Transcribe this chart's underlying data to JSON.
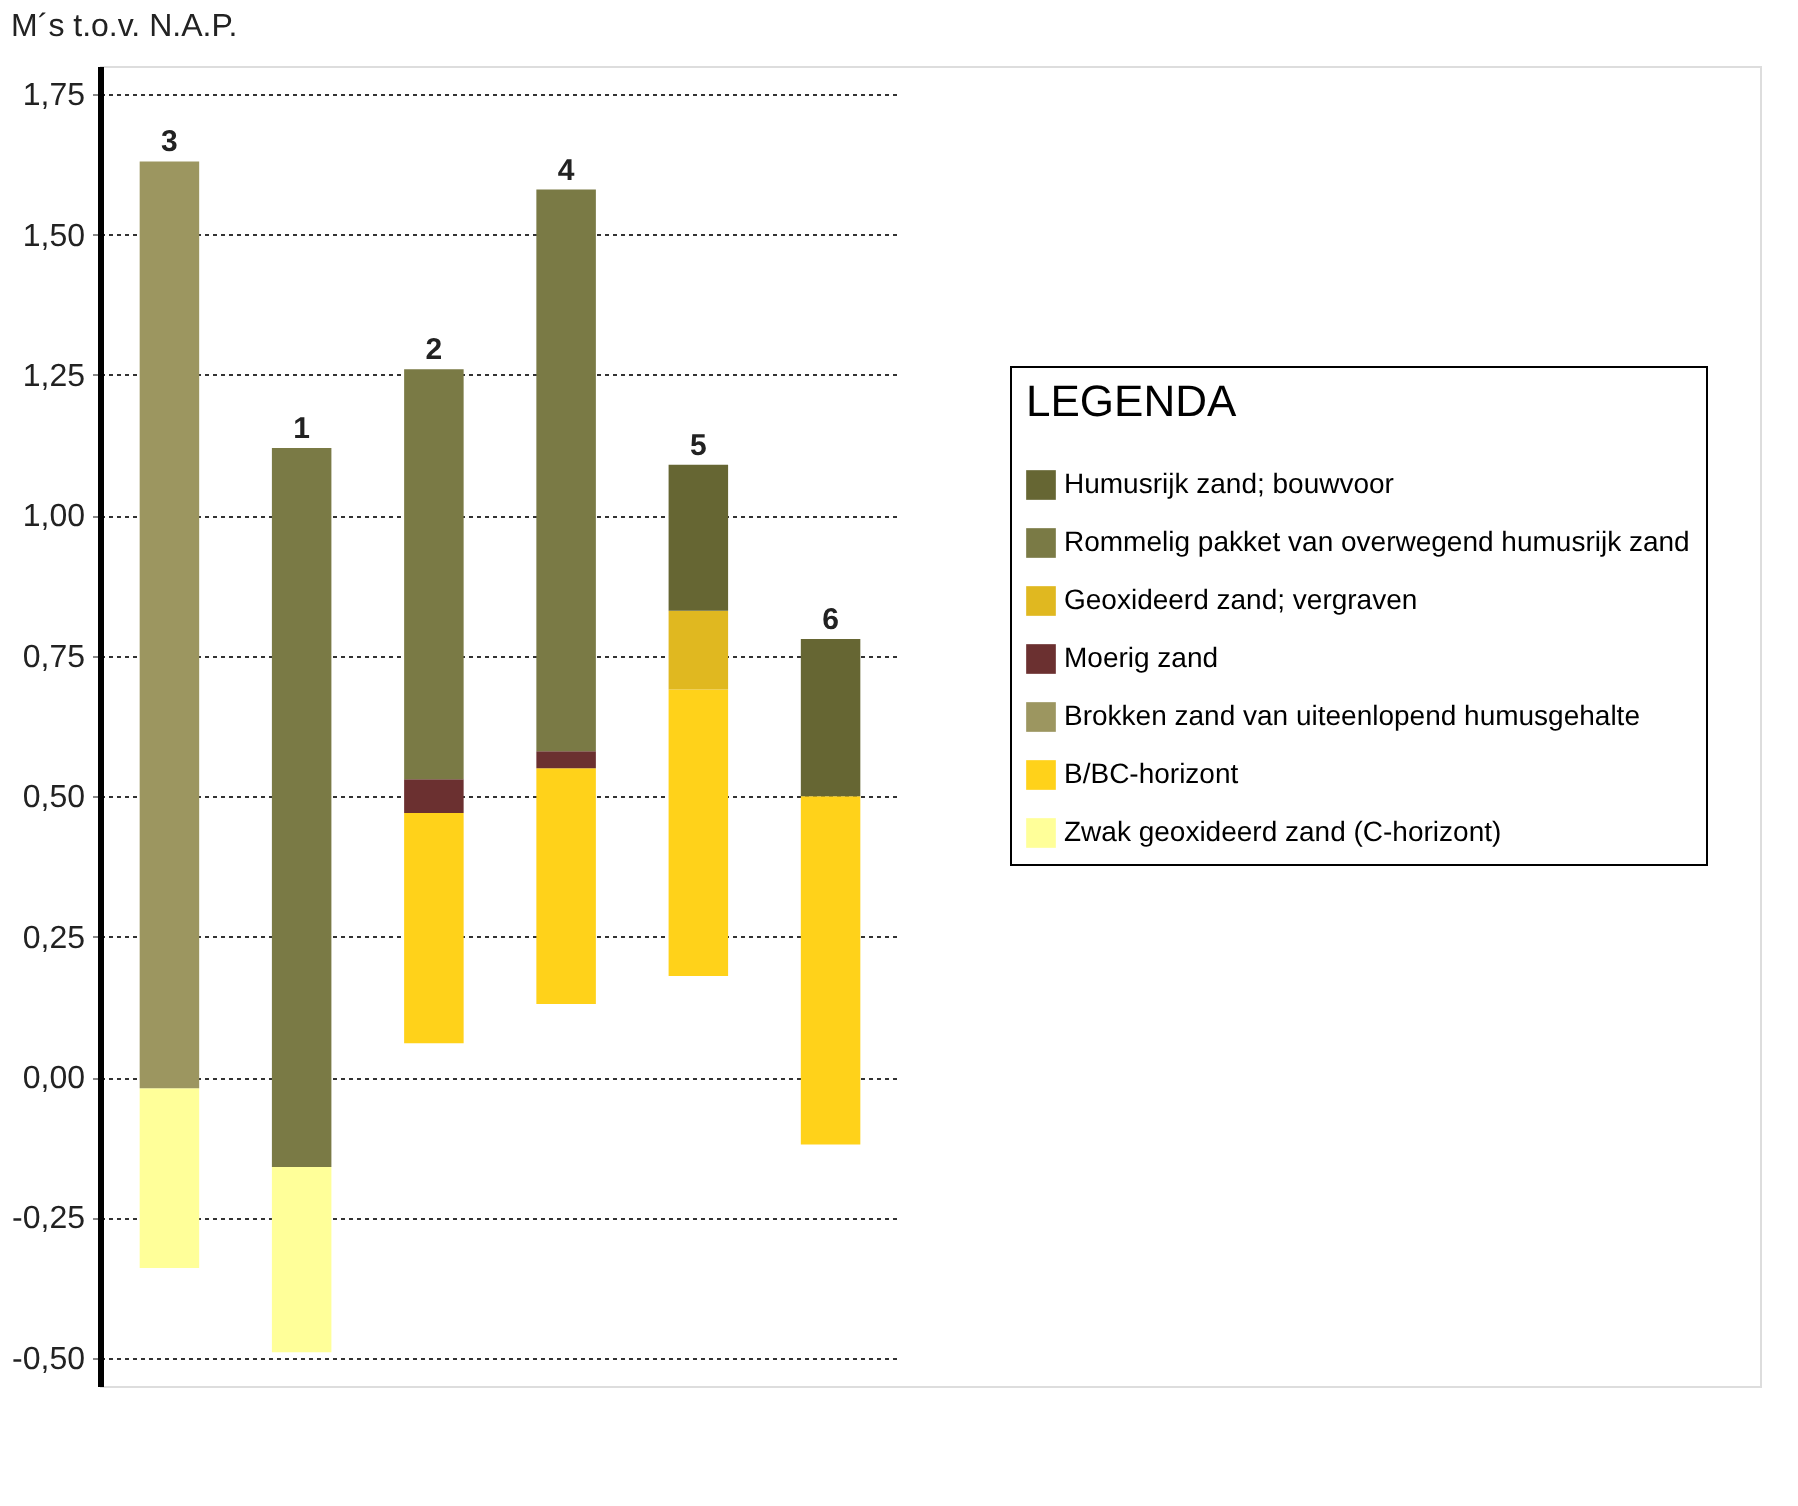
{
  "chart_data": {
    "type": "bar",
    "ylabel": "M´s  t.o.v. N.A.P.",
    "legend_title": "LEGENDA",
    "categories": [
      "3",
      "1",
      "2",
      "4",
      "5",
      "6"
    ],
    "series": [
      {
        "name": "Zwak geoxideerd zand (C-horizont)",
        "color": "#ffff99",
        "base": [
          -0.34,
          -0.49,
          null,
          null,
          null,
          null
        ],
        "values": [
          0.32,
          0.33,
          null,
          null,
          null,
          null
        ]
      },
      {
        "name": "B/BC-horizont",
        "color": "#ffd21a",
        "base": [
          null,
          null,
          0.06,
          0.13,
          0.18,
          -0.12
        ],
        "values": [
          null,
          null,
          0.41,
          0.42,
          0.51,
          0.62
        ]
      },
      {
        "name": "Brokken zand van uiteenlopend humusgehalte",
        "color": "#9c9660",
        "base": [
          -0.02,
          null,
          null,
          null,
          null,
          null
        ],
        "values": [
          1.65,
          null,
          null,
          null,
          null,
          null
        ]
      },
      {
        "name": "Moerig zand",
        "color": "#6b3030",
        "base": [
          null,
          null,
          0.47,
          0.55,
          null,
          null
        ],
        "values": [
          null,
          null,
          0.06,
          0.03,
          null,
          null
        ]
      },
      {
        "name": "Geoxideerd zand; vergraven",
        "color": "#e0b820",
        "base": [
          null,
          null,
          null,
          null,
          0.69,
          null
        ],
        "values": [
          null,
          null,
          null,
          null,
          0.14,
          null
        ]
      },
      {
        "name": "Rommelig pakket van overwegend humusrijk zand",
        "color": "#7a7a45",
        "base": [
          null,
          -0.16,
          0.53,
          0.58,
          null,
          null
        ],
        "values": [
          null,
          1.28,
          0.73,
          1.0,
          null,
          null
        ]
      },
      {
        "name": "Humusrijk zand; bouwvoor",
        "color": "#666633",
        "base": [
          null,
          null,
          null,
          null,
          0.83,
          0.5
        ],
        "values": [
          null,
          null,
          null,
          null,
          0.26,
          0.28
        ]
      }
    ],
    "ylim": [
      -0.55,
      1.8
    ],
    "yticks": [
      {
        "value": -0.5,
        "label": "-0,50"
      },
      {
        "value": -0.25,
        "label": "-0,25"
      },
      {
        "value": 0,
        "label": "0,00"
      },
      {
        "value": 0.25,
        "label": "0,25"
      },
      {
        "value": 0.5,
        "label": "0,50"
      },
      {
        "value": 0.75,
        "label": "0,75"
      },
      {
        "value": 1.0,
        "label": "1,00"
      },
      {
        "value": 1.25,
        "label": "1,25"
      },
      {
        "value": 1.5,
        "label": "1,50"
      },
      {
        "value": 1.75,
        "label": "1,75"
      }
    ],
    "grid": "y",
    "legend": "right"
  }
}
